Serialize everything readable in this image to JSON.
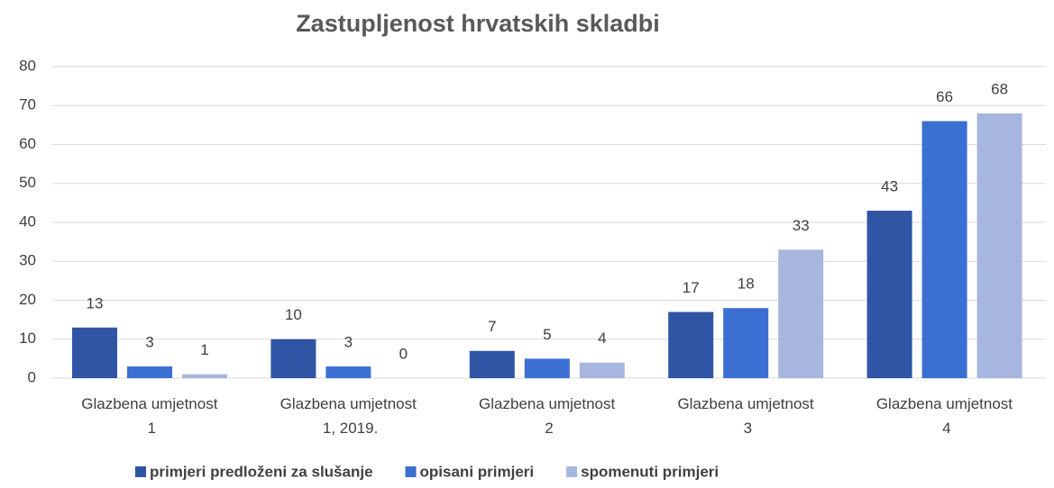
{
  "chart_data": {
    "type": "bar",
    "title": "Zastupljenost hrvatskih skladbi",
    "categories": [
      "Glazbena umjetnost 1",
      "Glazbena umjetnost 1, 2019.",
      "Glazbena umjetnost 2",
      "Glazbena umjetnost 3",
      "Glazbena umjetnost 4"
    ],
    "series": [
      {
        "name": "primjeri predloženi za slušanje",
        "color": "#2f55a4",
        "values": [
          13,
          10,
          7,
          17,
          43
        ]
      },
      {
        "name": "opisani primjeri",
        "color": "#3b6fd1",
        "values": [
          3,
          3,
          5,
          18,
          66
        ]
      },
      {
        "name": "spomenuti primjeri",
        "color": "#a7b6df",
        "values": [
          1,
          0,
          4,
          33,
          68
        ]
      }
    ],
    "ylim": [
      0,
      80
    ],
    "yticks": [
      0,
      10,
      20,
      30,
      40,
      50,
      60,
      70,
      80
    ],
    "grid": true,
    "legend": "bottom"
  }
}
